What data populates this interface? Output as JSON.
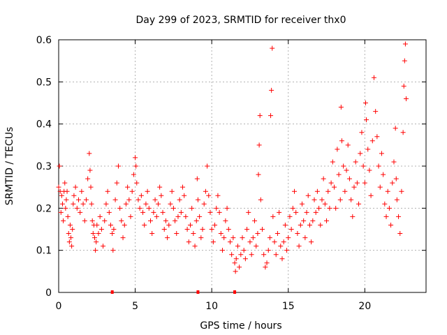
{
  "chart_data": {
    "type": "scatter",
    "title": "Day 299 of 2023, SRMTID for receiver thx0",
    "xlabel": "GPS time / hours",
    "ylabel": "SRMTID / TECUs",
    "xlim": [
      0,
      24
    ],
    "ylim": [
      0,
      0.6
    ],
    "xticks": [
      0,
      5,
      10,
      15,
      20
    ],
    "yticks": [
      0,
      0.1,
      0.2,
      0.3,
      0.4,
      0.5,
      0.6
    ],
    "xtick_labels": [
      "0",
      "5",
      "10",
      "15",
      "20"
    ],
    "ytick_labels": [
      "0",
      "0.1",
      "0.2",
      "0.3",
      "0.4",
      "0.5",
      "0.6"
    ],
    "grid": true,
    "marker": "+",
    "color": "#ff0000",
    "series": [
      {
        "name": "thx0",
        "points": [
          [
            0.0,
            0.25
          ],
          [
            0.05,
            0.3
          ],
          [
            0.1,
            0.24
          ],
          [
            0.15,
            0.19
          ],
          [
            0.2,
            0.23
          ],
          [
            0.25,
            0.21
          ],
          [
            0.3,
            0.17
          ],
          [
            0.35,
            0.24
          ],
          [
            0.4,
            0.26
          ],
          [
            0.45,
            0.2
          ],
          [
            0.5,
            0.22
          ],
          [
            0.55,
            0.24
          ],
          [
            0.6,
            0.18
          ],
          [
            0.65,
            0.14
          ],
          [
            0.7,
            0.12
          ],
          [
            0.75,
            0.16
          ],
          [
            0.8,
            0.13
          ],
          [
            0.85,
            0.11
          ],
          [
            0.9,
            0.15
          ],
          [
            0.95,
            0.21
          ],
          [
            1.0,
            0.23
          ],
          [
            1.1,
            0.25
          ],
          [
            1.2,
            0.2
          ],
          [
            1.3,
            0.22
          ],
          [
            1.4,
            0.19
          ],
          [
            1.5,
            0.24
          ],
          [
            1.6,
            0.21
          ],
          [
            1.7,
            0.17
          ],
          [
            1.8,
            0.22
          ],
          [
            1.9,
            0.27
          ],
          [
            2.0,
            0.33
          ],
          [
            2.05,
            0.29
          ],
          [
            2.1,
            0.25
          ],
          [
            2.15,
            0.21
          ],
          [
            2.2,
            0.17
          ],
          [
            2.25,
            0.14
          ],
          [
            2.3,
            0.16
          ],
          [
            2.35,
            0.13
          ],
          [
            2.4,
            0.1
          ],
          [
            2.45,
            0.12
          ],
          [
            2.5,
            0.16
          ],
          [
            2.6,
            0.14
          ],
          [
            2.7,
            0.18
          ],
          [
            2.8,
            0.15
          ],
          [
            2.9,
            0.11
          ],
          [
            3.0,
            0.17
          ],
          [
            3.1,
            0.21
          ],
          [
            3.2,
            0.24
          ],
          [
            3.3,
            0.19
          ],
          [
            3.4,
            0.16
          ],
          [
            3.5,
            0.14
          ],
          [
            3.55,
            0.1
          ],
          [
            3.6,
            0.15
          ],
          [
            3.7,
            0.22
          ],
          [
            3.8,
            0.26
          ],
          [
            3.9,
            0.3
          ],
          [
            4.0,
            0.2
          ],
          [
            4.1,
            0.17
          ],
          [
            4.2,
            0.13
          ],
          [
            4.3,
            0.16
          ],
          [
            4.4,
            0.21
          ],
          [
            4.5,
            0.25
          ],
          [
            4.6,
            0.22
          ],
          [
            4.7,
            0.18
          ],
          [
            4.8,
            0.24
          ],
          [
            4.9,
            0.28
          ],
          [
            5.0,
            0.32
          ],
          [
            5.05,
            0.3
          ],
          [
            5.1,
            0.26
          ],
          [
            5.2,
            0.22
          ],
          [
            5.3,
            0.2
          ],
          [
            5.4,
            0.23
          ],
          [
            5.5,
            0.19
          ],
          [
            5.6,
            0.16
          ],
          [
            5.7,
            0.21
          ],
          [
            5.8,
            0.24
          ],
          [
            5.9,
            0.2
          ],
          [
            6.0,
            0.17
          ],
          [
            6.1,
            0.14
          ],
          [
            6.2,
            0.19
          ],
          [
            6.3,
            0.22
          ],
          [
            6.4,
            0.18
          ],
          [
            6.5,
            0.21
          ],
          [
            6.6,
            0.25
          ],
          [
            6.7,
            0.23
          ],
          [
            6.8,
            0.19
          ],
          [
            6.9,
            0.15
          ],
          [
            7.0,
            0.17
          ],
          [
            7.1,
            0.13
          ],
          [
            7.2,
            0.16
          ],
          [
            7.3,
            0.21
          ],
          [
            7.4,
            0.24
          ],
          [
            7.5,
            0.2
          ],
          [
            7.6,
            0.17
          ],
          [
            7.7,
            0.14
          ],
          [
            7.8,
            0.18
          ],
          [
            7.9,
            0.22
          ],
          [
            8.0,
            0.19
          ],
          [
            8.1,
            0.25
          ],
          [
            8.2,
            0.23
          ],
          [
            8.3,
            0.18
          ],
          [
            8.4,
            0.15
          ],
          [
            8.5,
            0.12
          ],
          [
            8.6,
            0.16
          ],
          [
            8.7,
            0.2
          ],
          [
            8.8,
            0.14
          ],
          [
            8.9,
            0.11
          ],
          [
            9.0,
            0.17
          ],
          [
            9.05,
            0.27
          ],
          [
            9.1,
            0.22
          ],
          [
            9.2,
            0.18
          ],
          [
            9.3,
            0.13
          ],
          [
            9.4,
            0.15
          ],
          [
            9.5,
            0.21
          ],
          [
            9.6,
            0.24
          ],
          [
            9.7,
            0.3
          ],
          [
            9.8,
            0.23
          ],
          [
            9.9,
            0.19
          ],
          [
            10.0,
            0.15
          ],
          [
            10.1,
            0.12
          ],
          [
            10.2,
            0.16
          ],
          [
            10.3,
            0.2
          ],
          [
            10.4,
            0.23
          ],
          [
            10.5,
            0.19
          ],
          [
            10.6,
            0.14
          ],
          [
            10.7,
            0.1
          ],
          [
            10.8,
            0.13
          ],
          [
            10.9,
            0.17
          ],
          [
            11.0,
            0.2
          ],
          [
            11.1,
            0.15
          ],
          [
            11.2,
            0.12
          ],
          [
            11.3,
            0.09
          ],
          [
            11.4,
            0.13
          ],
          [
            11.5,
            0.07
          ],
          [
            11.55,
            0.05
          ],
          [
            11.6,
            0.08
          ],
          [
            11.7,
            0.11
          ],
          [
            11.8,
            0.06
          ],
          [
            11.9,
            0.09
          ],
          [
            12.0,
            0.13
          ],
          [
            12.1,
            0.1
          ],
          [
            12.2,
            0.08
          ],
          [
            12.3,
            0.15
          ],
          [
            12.4,
            0.19
          ],
          [
            12.5,
            0.12
          ],
          [
            12.6,
            0.09
          ],
          [
            12.7,
            0.13
          ],
          [
            12.8,
            0.17
          ],
          [
            12.9,
            0.11
          ],
          [
            13.0,
            0.14
          ],
          [
            13.05,
            0.28
          ],
          [
            13.1,
            0.35
          ],
          [
            13.15,
            0.42
          ],
          [
            13.2,
            0.22
          ],
          [
            13.3,
            0.15
          ],
          [
            13.4,
            0.09
          ],
          [
            13.5,
            0.06
          ],
          [
            13.6,
            0.07
          ],
          [
            13.7,
            0.1
          ],
          [
            13.8,
            0.13
          ],
          [
            13.85,
            0.42
          ],
          [
            13.9,
            0.48
          ],
          [
            13.95,
            0.58
          ],
          [
            14.0,
            0.18
          ],
          [
            14.1,
            0.12
          ],
          [
            14.2,
            0.09
          ],
          [
            14.3,
            0.14
          ],
          [
            14.4,
            0.19
          ],
          [
            14.5,
            0.11
          ],
          [
            14.6,
            0.08
          ],
          [
            14.7,
            0.12
          ],
          [
            14.8,
            0.16
          ],
          [
            14.9,
            0.1
          ],
          [
            15.0,
            0.13
          ],
          [
            15.1,
            0.18
          ],
          [
            15.2,
            0.15
          ],
          [
            15.3,
            0.2
          ],
          [
            15.4,
            0.24
          ],
          [
            15.5,
            0.19
          ],
          [
            15.6,
            0.14
          ],
          [
            15.7,
            0.11
          ],
          [
            15.8,
            0.16
          ],
          [
            15.9,
            0.21
          ],
          [
            16.0,
            0.17
          ],
          [
            16.1,
            0.13
          ],
          [
            16.2,
            0.19
          ],
          [
            16.3,
            0.23
          ],
          [
            16.4,
            0.16
          ],
          [
            16.5,
            0.12
          ],
          [
            16.6,
            0.17
          ],
          [
            16.7,
            0.22
          ],
          [
            16.8,
            0.19
          ],
          [
            16.9,
            0.24
          ],
          [
            17.0,
            0.2
          ],
          [
            17.1,
            0.16
          ],
          [
            17.2,
            0.22
          ],
          [
            17.3,
            0.27
          ],
          [
            17.4,
            0.21
          ],
          [
            17.5,
            0.17
          ],
          [
            17.6,
            0.24
          ],
          [
            17.7,
            0.2
          ],
          [
            17.8,
            0.26
          ],
          [
            17.9,
            0.31
          ],
          [
            18.0,
            0.25
          ],
          [
            18.1,
            0.2
          ],
          [
            18.2,
            0.34
          ],
          [
            18.3,
            0.28
          ],
          [
            18.4,
            0.22
          ],
          [
            18.45,
            0.44
          ],
          [
            18.5,
            0.36
          ],
          [
            18.6,
            0.3
          ],
          [
            18.7,
            0.24
          ],
          [
            18.8,
            0.29
          ],
          [
            18.9,
            0.35
          ],
          [
            19.0,
            0.27
          ],
          [
            19.1,
            0.22
          ],
          [
            19.2,
            0.18
          ],
          [
            19.3,
            0.25
          ],
          [
            19.4,
            0.31
          ],
          [
            19.5,
            0.26
          ],
          [
            19.6,
            0.21
          ],
          [
            19.7,
            0.33
          ],
          [
            19.8,
            0.38
          ],
          [
            19.9,
            0.3
          ],
          [
            20.0,
            0.26
          ],
          [
            20.05,
            0.45
          ],
          [
            20.1,
            0.41
          ],
          [
            20.2,
            0.34
          ],
          [
            20.3,
            0.29
          ],
          [
            20.4,
            0.23
          ],
          [
            20.5,
            0.36
          ],
          [
            20.6,
            0.51
          ],
          [
            20.7,
            0.43
          ],
          [
            20.8,
            0.37
          ],
          [
            20.9,
            0.3
          ],
          [
            21.0,
            0.25
          ],
          [
            21.1,
            0.33
          ],
          [
            21.2,
            0.28
          ],
          [
            21.3,
            0.21
          ],
          [
            21.4,
            0.18
          ],
          [
            21.5,
            0.24
          ],
          [
            21.6,
            0.2
          ],
          [
            21.7,
            0.16
          ],
          [
            21.8,
            0.26
          ],
          [
            21.9,
            0.31
          ],
          [
            22.0,
            0.39
          ],
          [
            22.05,
            0.27
          ],
          [
            22.1,
            0.22
          ],
          [
            22.2,
            0.18
          ],
          [
            22.3,
            0.14
          ],
          [
            22.4,
            0.24
          ],
          [
            22.5,
            0.38
          ],
          [
            22.55,
            0.49
          ],
          [
            22.6,
            0.55
          ],
          [
            22.65,
            0.59
          ],
          [
            22.7,
            0.46
          ]
        ]
      }
    ],
    "zero_markers": [
      3.5,
      9.1,
      11.5
    ]
  }
}
